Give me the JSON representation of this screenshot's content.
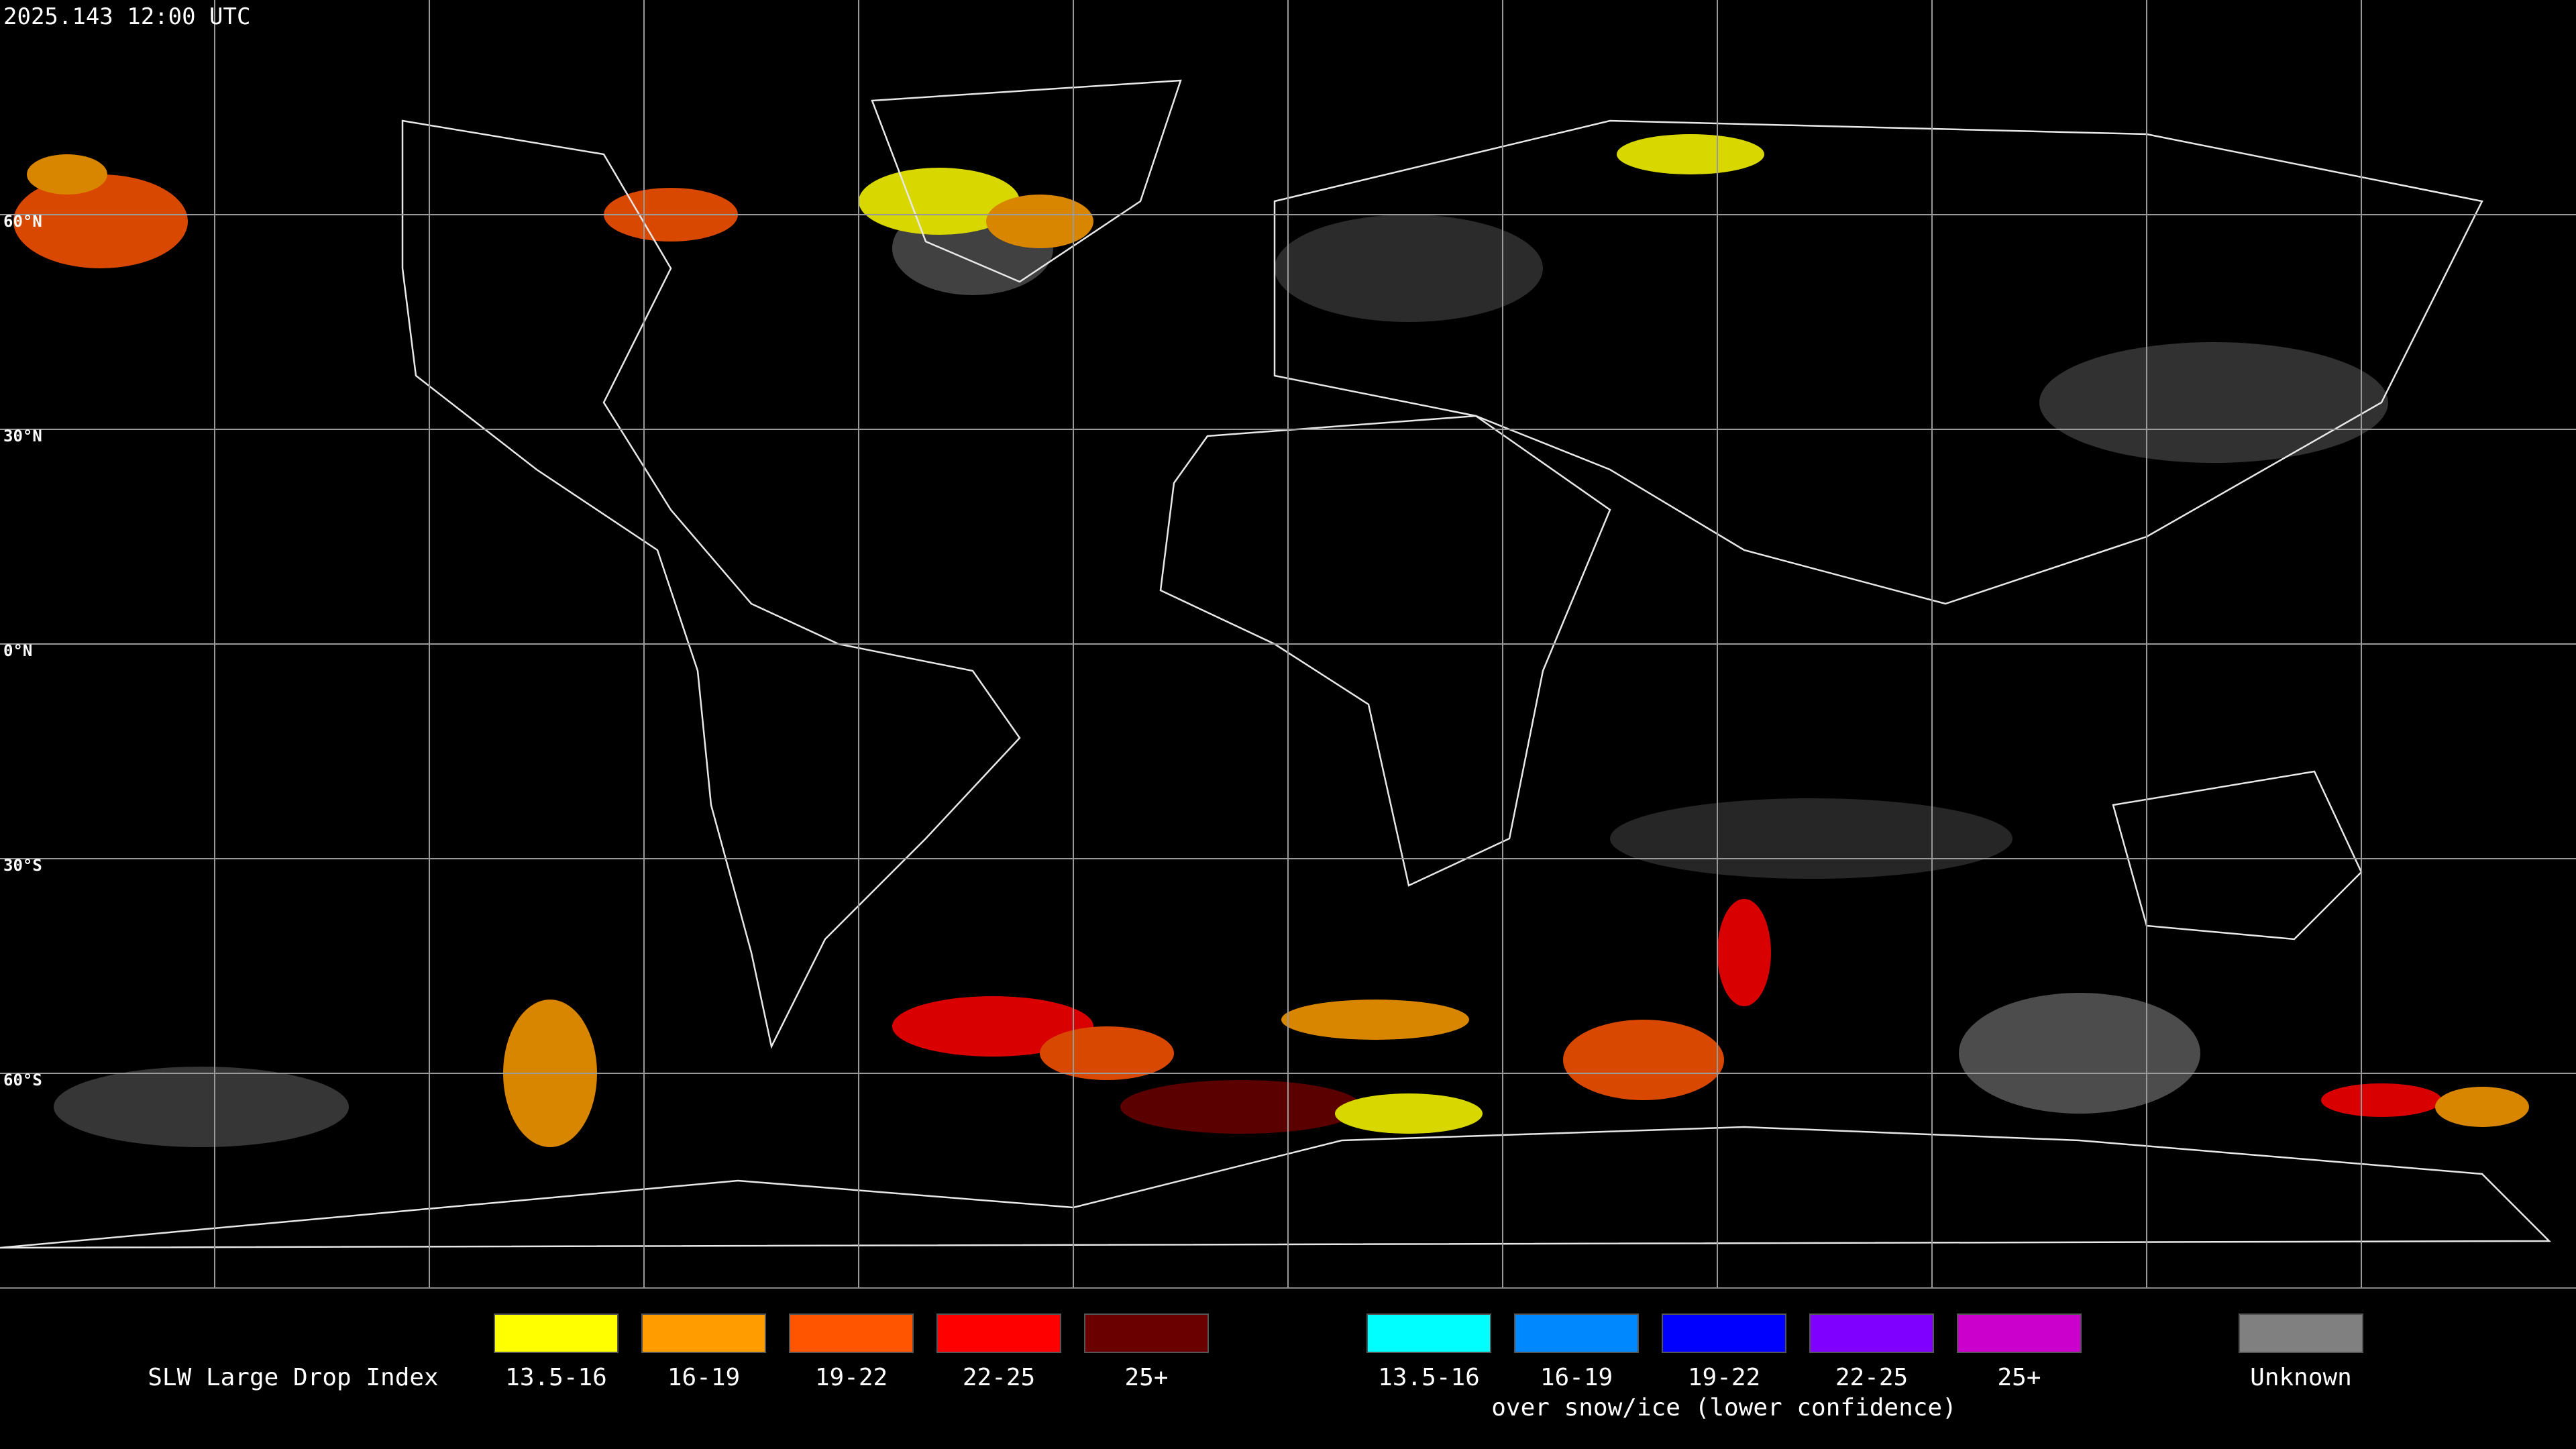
{
  "timestamp": "2025.143 12:00 UTC",
  "latitude_labels": [
    "60°N",
    "30°N",
    "0°N",
    "30°S",
    "60°S"
  ],
  "legend": {
    "title": "SLW Large Drop Index",
    "groups": [
      {
        "items": [
          {
            "label": "13.5-16",
            "color": "#ffff00"
          },
          {
            "label": "16-19",
            "color": "#ff9d00"
          },
          {
            "label": "19-22",
            "color": "#ff5500"
          },
          {
            "label": "22-25",
            "color": "#ff0000"
          },
          {
            "label": "25+",
            "color": "#6b0000"
          }
        ]
      },
      {
        "items": [
          {
            "label": "13.5-16",
            "color": "#00ffff"
          },
          {
            "label": "16-19",
            "color": "#0088ff"
          },
          {
            "label": "19-22",
            "color": "#0000ff"
          },
          {
            "label": "22-25",
            "color": "#7f00ff"
          },
          {
            "label": "25+",
            "color": "#cc00cc"
          }
        ],
        "caption": "over snow/ice (lower confidence)"
      }
    ],
    "unknown": {
      "label": "Unknown",
      "color": "#808080"
    }
  }
}
